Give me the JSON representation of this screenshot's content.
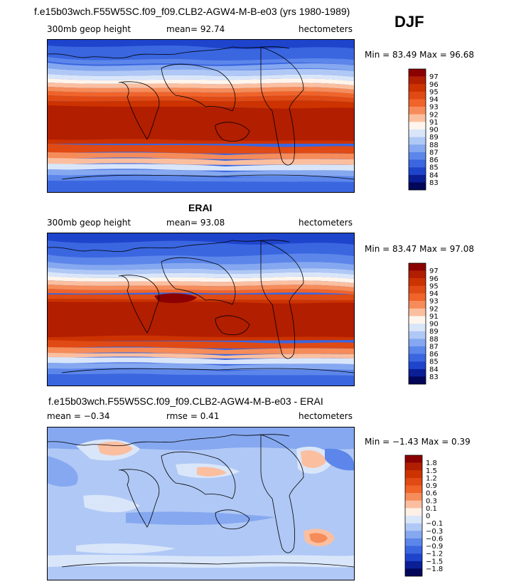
{
  "season": "DJF",
  "panels": [
    {
      "id": "model",
      "title": "f.e15b03wch.F55W5SC.f09_f09.CLB2-AGW4-M-B-e03 (yrs 1980-1989)",
      "left_label": "300mb geop height",
      "mid_label": "mean=  92.74",
      "right_label": "hectometers",
      "minmax": "Min =  83.49 Max =  96.68",
      "levels": [
        "97",
        "96",
        "95",
        "94",
        "93",
        "92",
        "91",
        "90",
        "89",
        "88",
        "87",
        "86",
        "85",
        "84",
        "83"
      ],
      "colors": [
        "#8b0000",
        "#b21e00",
        "#cc3300",
        "#e04a14",
        "#f0642a",
        "#f58c5a",
        "#fbbfa0",
        "#fff5ec",
        "#d9e6fa",
        "#b0c8f5",
        "#85a8f0",
        "#5c86ea",
        "#3a66e0",
        "#1f44cc",
        "#0a1f96",
        "#02075a"
      ]
    },
    {
      "id": "obs",
      "title": "ERAI",
      "left_label": "300mb geop height",
      "mid_label": "mean=  93.08",
      "right_label": "hectometers",
      "minmax": "Min =  83.47 Max =  97.08",
      "levels": [
        "97",
        "96",
        "95",
        "94",
        "93",
        "92",
        "91",
        "90",
        "89",
        "88",
        "87",
        "86",
        "85",
        "84",
        "83"
      ],
      "colors": [
        "#8b0000",
        "#b21e00",
        "#cc3300",
        "#e04a14",
        "#f0642a",
        "#f58c5a",
        "#fbbfa0",
        "#fff5ec",
        "#d9e6fa",
        "#b0c8f5",
        "#85a8f0",
        "#5c86ea",
        "#3a66e0",
        "#1f44cc",
        "#0a1f96",
        "#02075a"
      ]
    },
    {
      "id": "diff",
      "title": "f.e15b03wch.F55W5SC.f09_f09.CLB2-AGW4-M-B-e03 - ERAI",
      "left_label": "mean =   −0.34",
      "mid_label": "rmse =    0.41",
      "right_label": "hectometers",
      "minmax": "Min =  −1.43 Max =    0.39",
      "levels": [
        "1.8",
        "1.5",
        "1.2",
        "0.9",
        "0.6",
        "0.3",
        "0.1",
        "0",
        "−0.1",
        "−0.3",
        "−0.6",
        "−0.9",
        "−1.2",
        "−1.5",
        "−1.8"
      ],
      "colors": [
        "#8b0000",
        "#b21e00",
        "#cc3300",
        "#e04a14",
        "#f0642a",
        "#f58c5a",
        "#fbbfa0",
        "#fff0e6",
        "#d9e6fa",
        "#b0c8f5",
        "#85a8f0",
        "#5c86ea",
        "#3a66e0",
        "#1f44cc",
        "#0a1f96",
        "#02075a"
      ]
    }
  ]
}
